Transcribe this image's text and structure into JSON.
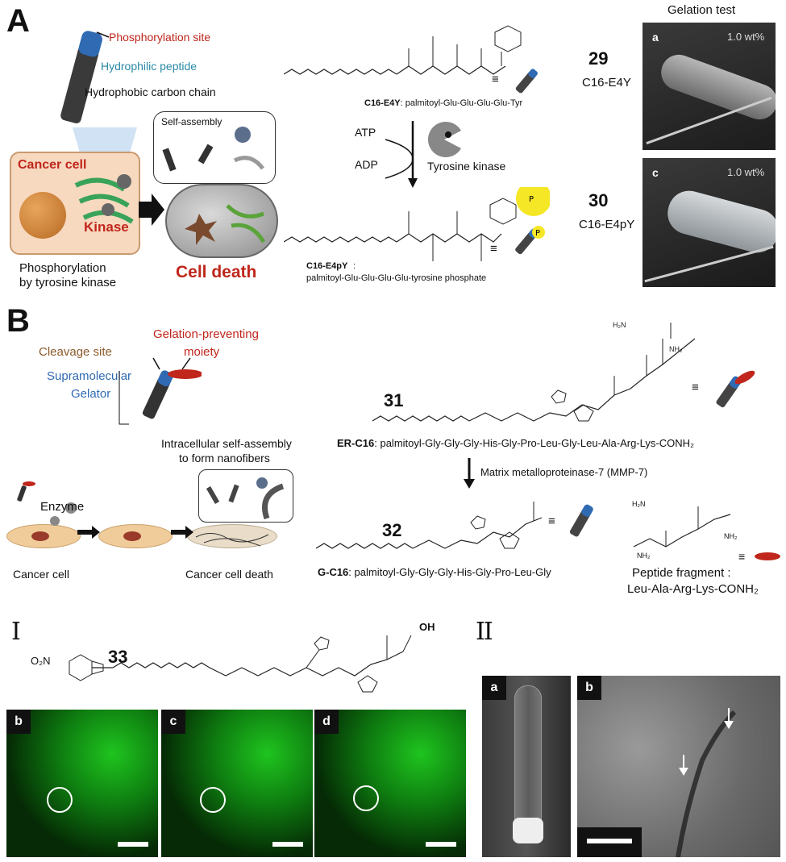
{
  "panelA": {
    "letter": "A",
    "phosphorylation_site": "Phosphorylation site",
    "hydrophilic_peptide": "Hydrophilic peptide",
    "hydrophobic_chain": "Hydrophobic carbon chain",
    "cancer_cell": "Cancer cell",
    "kinase": "Kinase",
    "self_assembly": "Self-assembly",
    "cell_death": "Cell death",
    "phosph_caption_1": "Phosphorylation",
    "phosph_caption_2": "by tyrosine kinase",
    "compound29_name": "C16-E4Y",
    "compound29_desc": ": palmitoyl-Glu-Glu-Glu-Glu-Tyr",
    "atp": "ATP",
    "adp": "ADP",
    "tyrosine_kinase": "Tyrosine kinase",
    "compound30_name": "C16-E4pY",
    "compound30_desc": "palmitoyl-Glu-Glu-Glu-Glu-tyrosine phosphate",
    "gelation_test": "Gelation test",
    "num29": "29",
    "label29": "C16-E4Y",
    "num30": "30",
    "label30": "C16-E4pY",
    "photo_a_tag": "a",
    "photo_a_conc": "1.0 wt%",
    "photo_c_tag": "c",
    "photo_c_conc": "1.0 wt%"
  },
  "panelB": {
    "letter": "B",
    "gelation_preventing_1": "Gelation-preventing",
    "gelation_preventing_2": "moiety",
    "cleavage_site": "Cleavage site",
    "supramolecular": "Supramolecular",
    "gelator": "Gelator",
    "intracellular_1": "Intracellular self-assembly",
    "intracellular_2": "to form nanofibers",
    "enzyme": "Enzyme",
    "cancer_cell": "Cancer cell",
    "cancer_cell_death": "Cancer cell death",
    "num31": "31",
    "er_c16_name": "ER-C16",
    "er_c16_desc": ": palmitoyl-Gly-Gly-Gly-His-Gly-Pro-Leu-Gly-Leu-Ala-Arg-Lys-CONH₂",
    "mmp7": "Matrix metalloproteinase-7 (MMP-7)",
    "num32": "32",
    "g_c16_name": "G-C16",
    "g_c16_desc": ": palmitoyl-Gly-Gly-Gly-His-Gly-Pro-Leu-Gly",
    "fragment_1": "Peptide fragment :",
    "fragment_2": "Leu-Ala-Arg-Lys-CONH₂"
  },
  "panelI": {
    "roman": "I",
    "num33": "33",
    "no2": "O₂N",
    "tags": [
      "b",
      "c",
      "d"
    ]
  },
  "panelII": {
    "roman": "II",
    "tag_a": "a",
    "tag_b": "b"
  }
}
